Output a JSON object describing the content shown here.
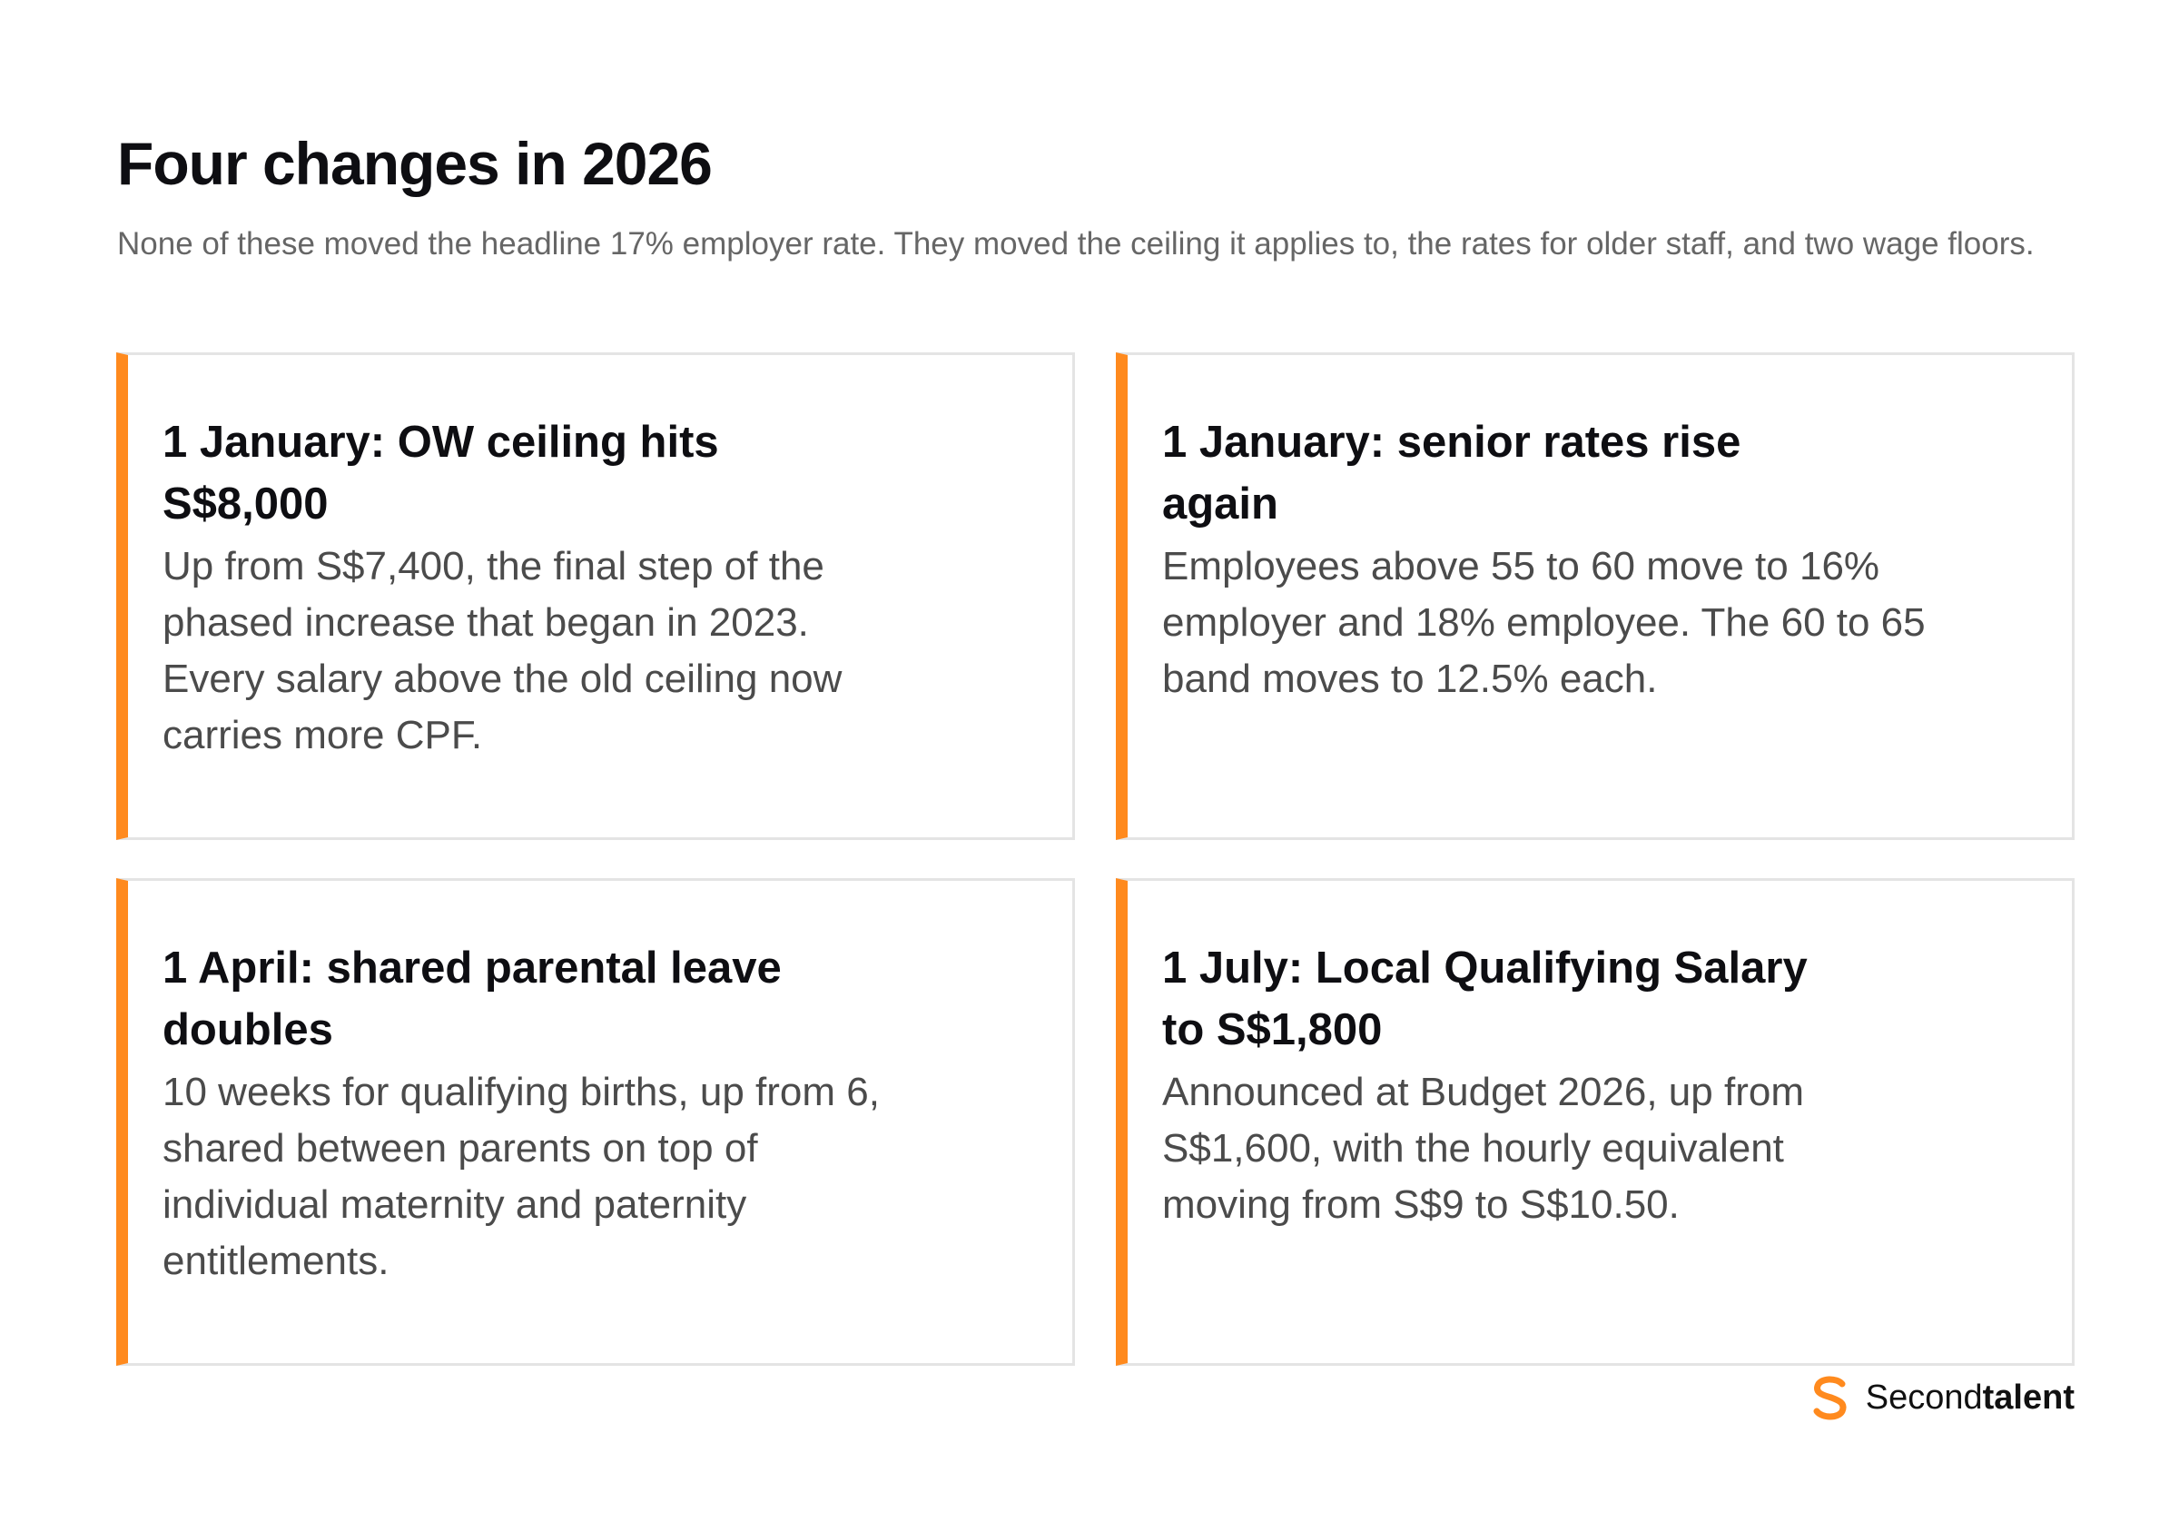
{
  "header": {
    "title": "Four changes in 2026",
    "subtitle": "None of these moved the headline 17% employer rate. They moved the ceiling it applies to, the rates for older staff, and two wage floors."
  },
  "colors": {
    "accent": "#ff8a1e",
    "card_border": "#e4e4e4",
    "title_text": "#0e0e12",
    "body_text": "#4b4b4b",
    "subtitle_text": "#666666"
  },
  "cards": [
    {
      "title": "1 January: OW ceiling hits S$8,000",
      "body": "Up from S$7,400, the final step of the phased increase that began in 2023. Every salary above the old ceiling now carries more CPF."
    },
    {
      "title": "1 January: senior rates rise again",
      "body": "Employees above 55 to 60 move to 16% employer and 18% employee. The 60 to 65 band moves to 12.5% each."
    },
    {
      "title": "1 April: shared parental leave doubles",
      "body": "10 weeks for qualifying births, up from 6, shared between parents on top of individual maternity and paternity entitlements."
    },
    {
      "title": "1 July: Local Qualifying Salary to S$1,800",
      "body": "Announced at Budget 2026, up from S$1,600, with the hourly equivalent moving from S$9 to S$10.50."
    }
  ],
  "brand": {
    "icon": "secondtalent-logo-icon",
    "name_regular": "Second",
    "name_bold": "talent"
  }
}
